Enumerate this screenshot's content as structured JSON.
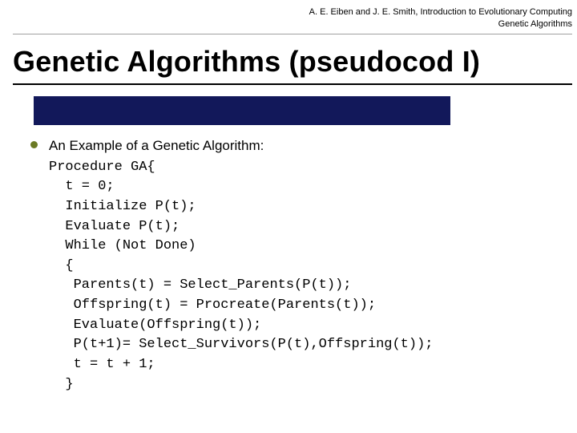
{
  "header": {
    "line1": "A. E. Eiben and J. E. Smith, Introduction to Evolutionary Computing",
    "line2": "Genetic Algorithms",
    "font_size": 11,
    "color": "#000000"
  },
  "title": {
    "text": "Genetic Algorithms (pseudocod I)",
    "font_size": 36,
    "font_weight": "bold",
    "color": "#000000",
    "rule_color": "#000000",
    "accent_color": "#12185a"
  },
  "bullet": {
    "dot_color": "#6b7a24",
    "lead_text": "An Example of a Genetic Algorithm:",
    "lead_font_size": 17
  },
  "code": {
    "font_family": "Courier New",
    "font_size": 17,
    "lines": [
      "Procedure GA{",
      "  t = 0;",
      "  Initialize P(t);",
      "  Evaluate P(t);",
      "  While (Not Done)",
      "  {",
      "   Parents(t) = Select_Parents(P(t));",
      "   Offspring(t) = Procreate(Parents(t));",
      "   Evaluate(Offspring(t));",
      "   P(t+1)= Select_Survivors(P(t),Offspring(t));",
      "   t = t + 1;",
      "  }"
    ]
  },
  "colors": {
    "background": "#ffffff",
    "header_rule": "#a0a0a0"
  }
}
